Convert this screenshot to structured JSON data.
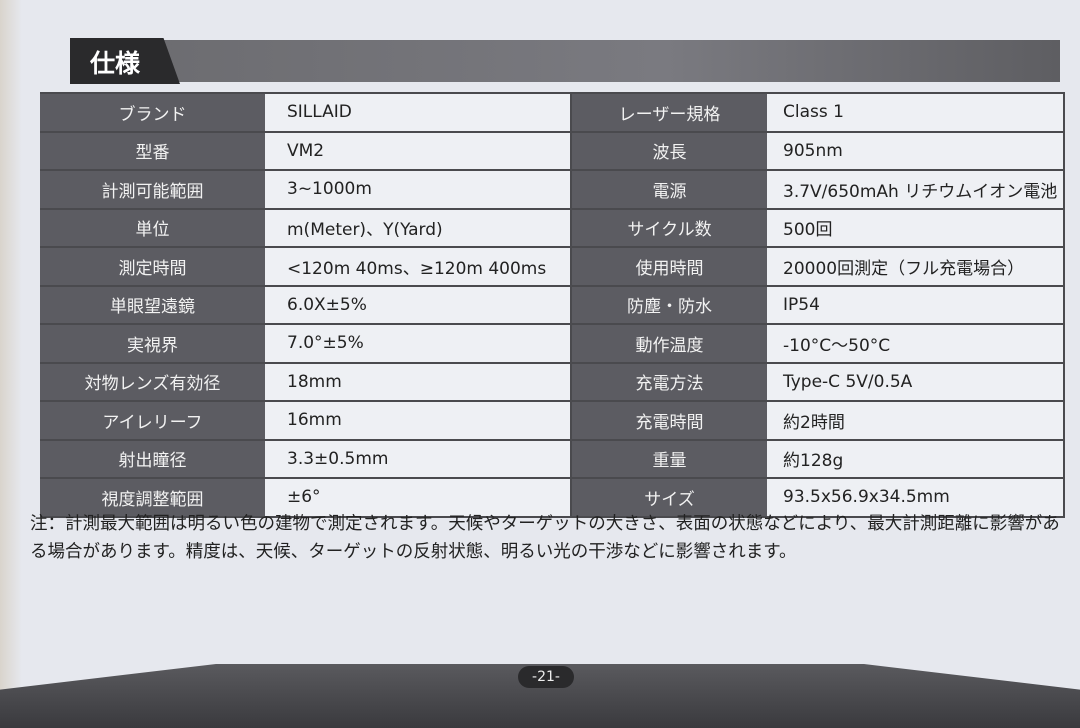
{
  "title": "仕様",
  "specs_left": [
    {
      "label": "ブランド",
      "value": "SILLAID"
    },
    {
      "label": "型番",
      "value": "VM2"
    },
    {
      "label": "計測可能範囲",
      "value": "3~1000m"
    },
    {
      "label": "単位",
      "value": "m(Meter)、Y(Yard)"
    },
    {
      "label": "測定時間",
      "value": "<120m 40ms、≥120m 400ms"
    },
    {
      "label": "単眼望遠鏡",
      "value": "6.0X±5%"
    },
    {
      "label": "実視界",
      "value": "7.0°±5%"
    },
    {
      "label": "対物レンズ有効径",
      "value": "18mm"
    },
    {
      "label": "アイレリーフ",
      "value": "16mm"
    },
    {
      "label": "射出瞳径",
      "value": "3.3±0.5mm"
    },
    {
      "label": "視度調整範囲",
      "value": "±6°"
    }
  ],
  "specs_right": [
    {
      "label": "レーザー規格",
      "value": "Class 1"
    },
    {
      "label": "波長",
      "value": "905nm"
    },
    {
      "label": "電源",
      "value": "3.7V/650mAh リチウムイオン電池"
    },
    {
      "label": "サイクル数",
      "value": "500回"
    },
    {
      "label": "使用時間",
      "value": "20000回測定（フル充電場合）"
    },
    {
      "label": "防塵・防水",
      "value": "IP54"
    },
    {
      "label": "動作温度",
      "value": "-10°C～50°C"
    },
    {
      "label": "充電方法",
      "value": "Type-C 5V/0.5A"
    },
    {
      "label": "充電時間",
      "value": "約2時間"
    },
    {
      "label": "重量",
      "value": "約128g"
    },
    {
      "label": "サイズ",
      "value": "93.5x56.9x34.5mm"
    }
  ],
  "note": "注：計測最大範囲は明るい色の建物で測定されます。天候やターゲットの大きさ、表面の状態などにより、最大計測距離に影響がある場合があります。精度は、天候、ターゲットの反射状態、明るい光の干渉などに影響されます。",
  "page_number": "-21-"
}
